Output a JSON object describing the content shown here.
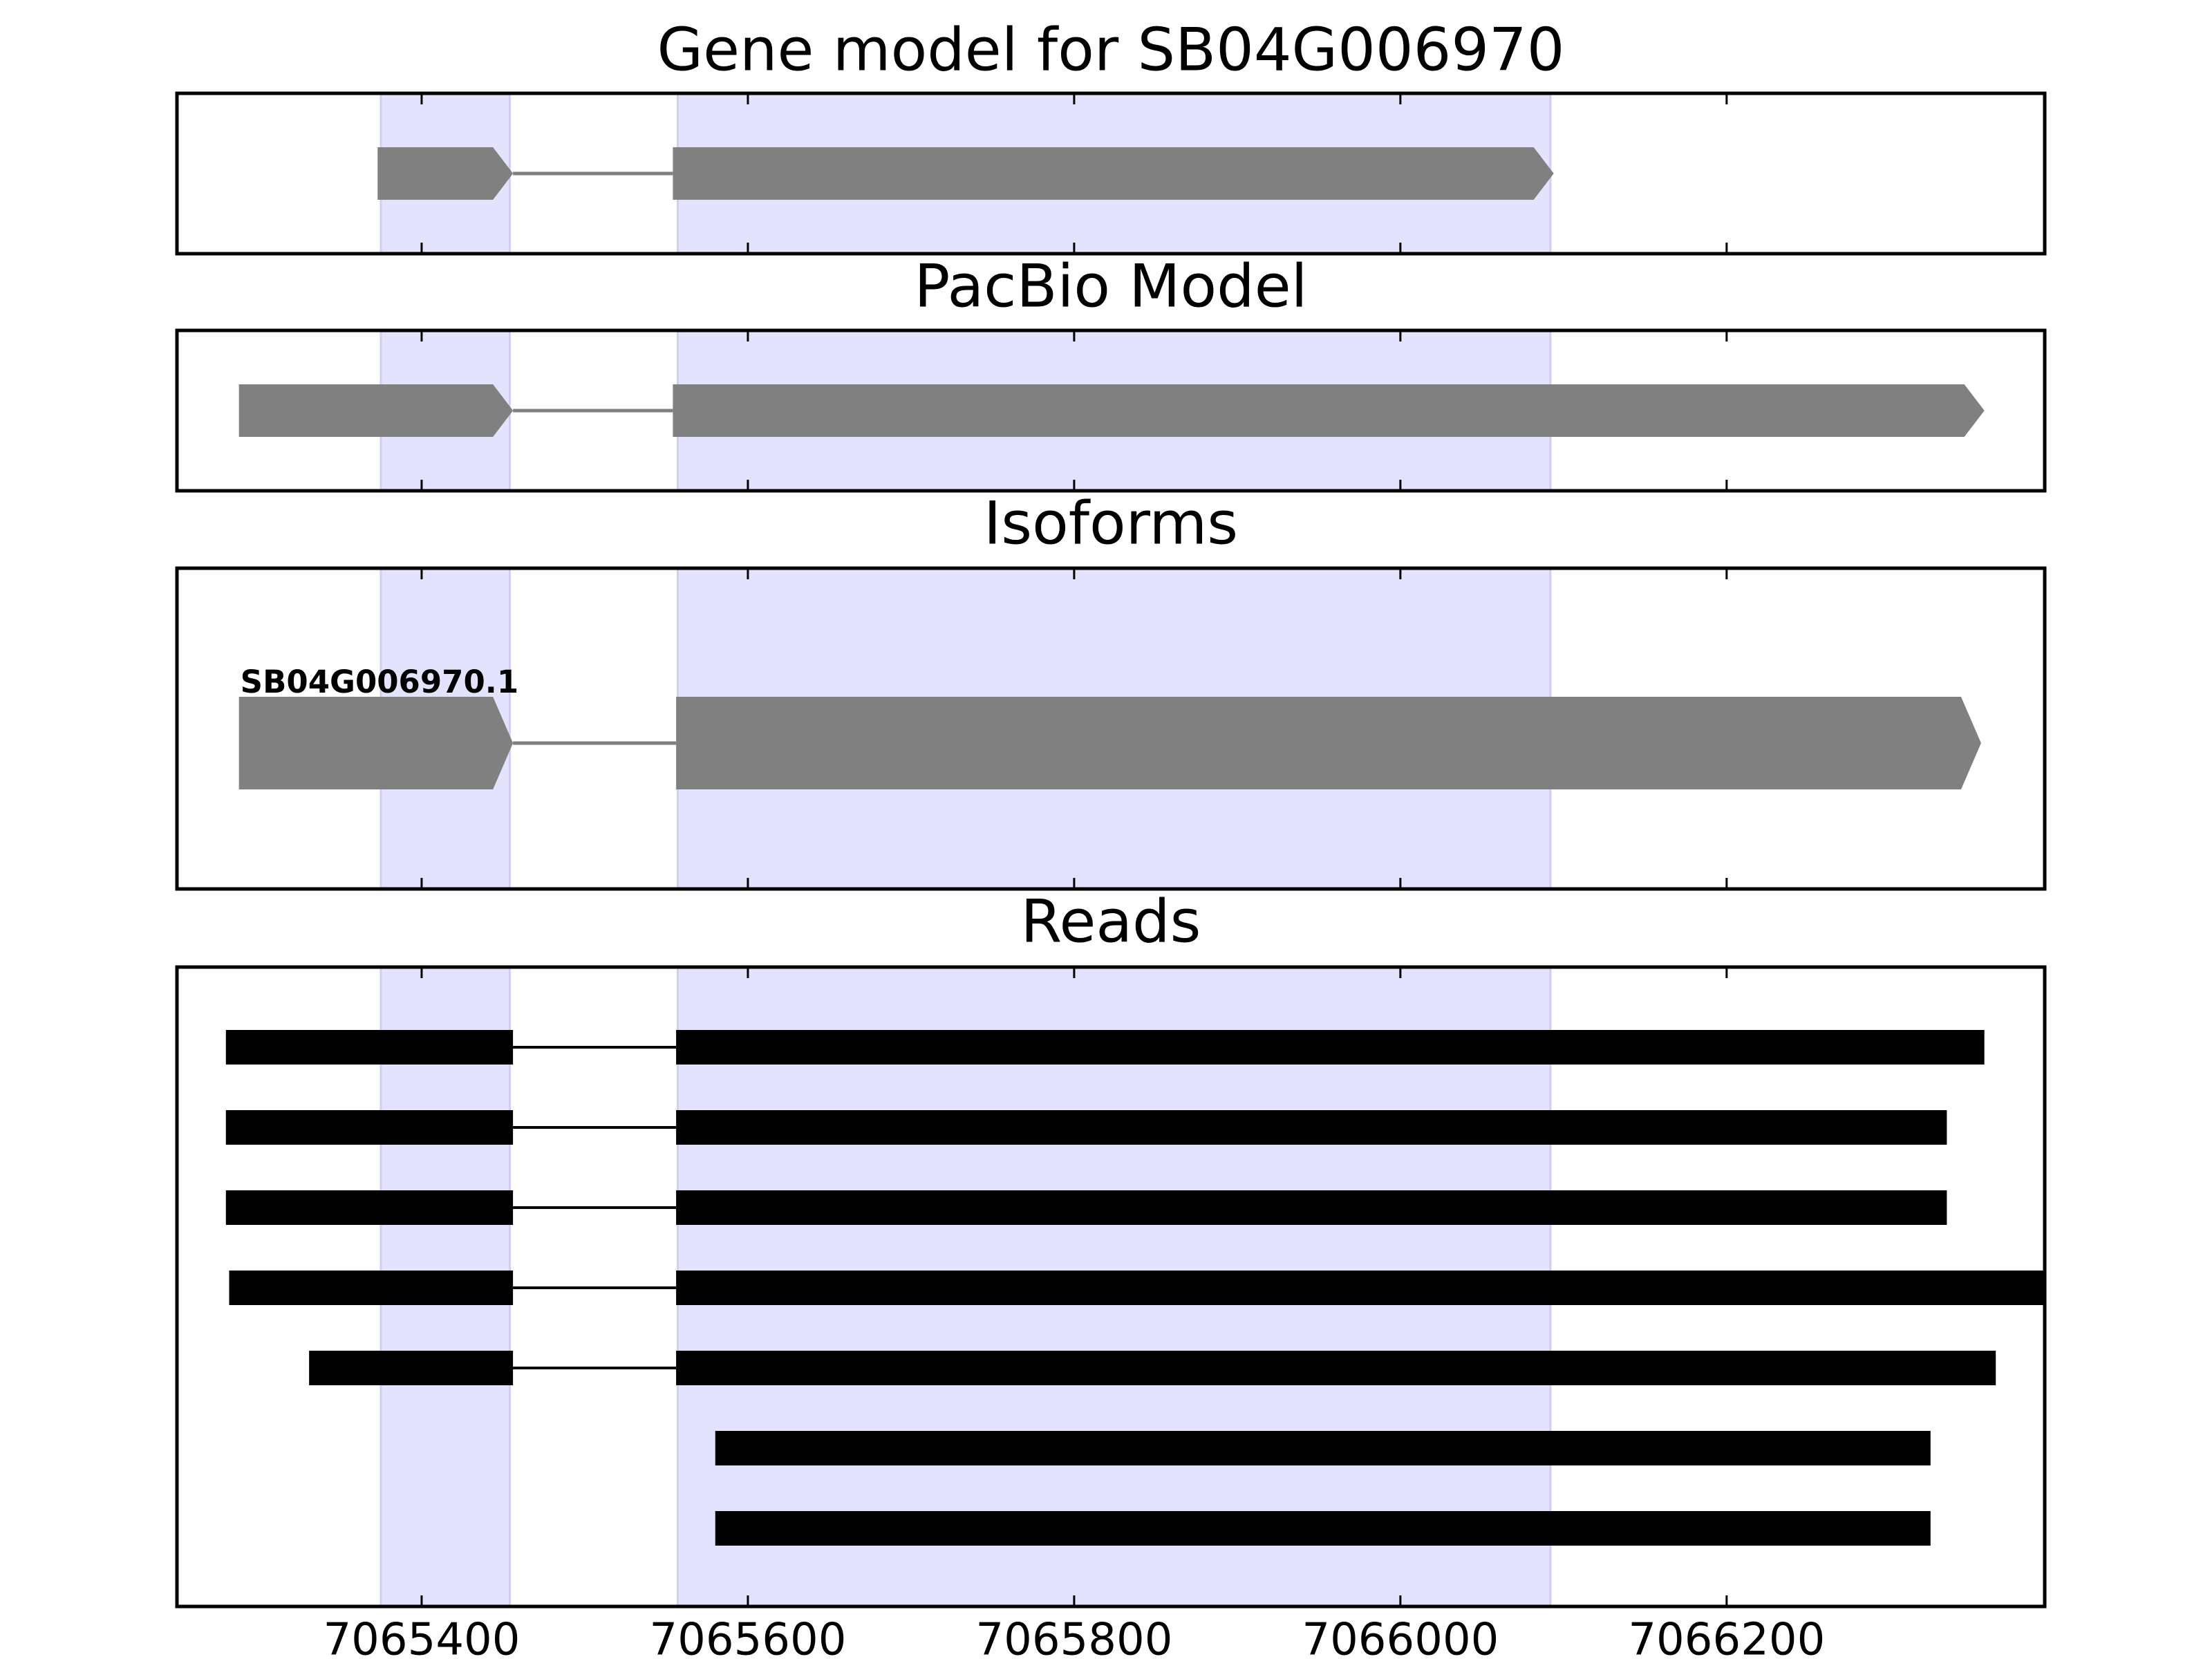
{
  "chart_data": {
    "type": "gene-model",
    "xlim": [
      7065250,
      7066395
    ],
    "xticks": [
      7065400,
      7065600,
      7065800,
      7066000,
      7066200
    ],
    "highlight_color": "#e3e3fd",
    "highlights": [
      [
        7065375,
        7065454
      ],
      [
        7065557,
        7066092
      ]
    ],
    "panels": [
      {
        "title": "Gene model for SB04G006970",
        "shape": "arrow",
        "features": [
          {
            "color": "#808080",
            "exons": [
              [
                7065373,
                7065456
              ],
              [
                7065554,
                7066094
              ]
            ]
          }
        ]
      },
      {
        "title": "PacBio Model",
        "shape": "arrow",
        "features": [
          {
            "color": "#808080",
            "exons": [
              [
                7065288,
                7065456
              ],
              [
                7065554,
                7066358
              ]
            ]
          }
        ]
      },
      {
        "title": "Isoforms",
        "shape": "arrow",
        "features": [
          {
            "label": "SB04G006970.1",
            "color": "#808080",
            "exons": [
              [
                7065288,
                7065456
              ],
              [
                7065556,
                7066356
              ]
            ]
          }
        ]
      },
      {
        "title": "Reads",
        "shape": "bar",
        "features": [
          {
            "color": "#000000",
            "exons": [
              [
                7065280,
                7065456
              ],
              [
                7065556,
                7066358
              ]
            ]
          },
          {
            "color": "#000000",
            "exons": [
              [
                7065280,
                7065456
              ],
              [
                7065556,
                7066335
              ]
            ]
          },
          {
            "color": "#000000",
            "exons": [
              [
                7065280,
                7065456
              ],
              [
                7065556,
                7066335
              ]
            ]
          },
          {
            "color": "#000000",
            "exons": [
              [
                7065282,
                7065456
              ],
              [
                7065556,
                7066395
              ]
            ]
          },
          {
            "color": "#000000",
            "exons": [
              [
                7065331,
                7065456
              ],
              [
                7065556,
                7066365
              ]
            ]
          },
          {
            "color": "#000000",
            "exons": [
              [
                7065580,
                7066325
              ]
            ]
          },
          {
            "color": "#000000",
            "exons": [
              [
                7065580,
                7066325
              ]
            ]
          }
        ]
      }
    ]
  }
}
